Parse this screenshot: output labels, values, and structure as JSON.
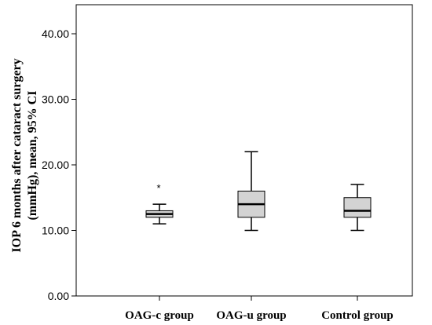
{
  "chart_data": {
    "type": "boxplot",
    "ylabel_line1": "IOP 6 months after cataract surgery",
    "ylabel_line2": "(mmHg), mean, 95% CI",
    "ylim": [
      0,
      45
    ],
    "yticks": [
      0,
      10,
      20,
      30,
      40
    ],
    "ytick_labels": [
      "0.00",
      "10.00",
      "20.00",
      "30.00",
      "40.00"
    ],
    "grid": false,
    "box_color": "#d3d3d3",
    "categories": [
      "OAG-c group",
      "OAG-u group",
      "Control group"
    ],
    "boxes": [
      {
        "min": 11,
        "q1": 12,
        "median": 12.5,
        "q3": 13,
        "max": 14,
        "outliers": [
          17
        ]
      },
      {
        "min": 10,
        "q1": 12,
        "median": 14,
        "q3": 16,
        "max": 22,
        "outliers": []
      },
      {
        "min": 10,
        "q1": 12,
        "median": 13,
        "q3": 15,
        "max": 17,
        "outliers": []
      }
    ],
    "outlier_marker": "*"
  }
}
